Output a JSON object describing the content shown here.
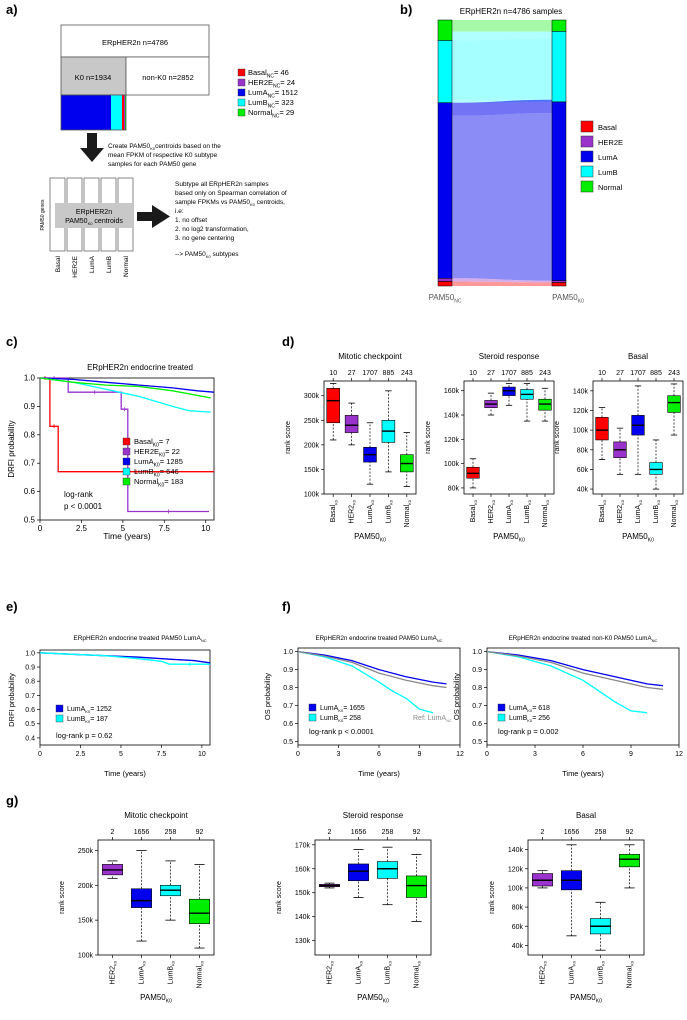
{
  "figure": {
    "panel_labels": [
      "a)",
      "b)",
      "c)",
      "d)",
      "e)",
      "f)",
      "g)"
    ]
  },
  "colors": {
    "Basal": "#ff0000",
    "HER2E": "#9933cc",
    "LumA": "#0000ee",
    "LumB": "#00ffff",
    "Normal": "#00ee00"
  },
  "panel_a": {
    "top_box": "ERpHER2n n=4786",
    "k0_box": "K0 n=1934",
    "nonk0_box": "non-K0 n=2852",
    "legend": [
      {
        "pre": "Basal",
        "sub": "NC",
        "post": "= 46",
        "color": "#ff0000"
      },
      {
        "pre": "HER2E",
        "sub": "NC",
        "post": "= 24",
        "color": "#9933cc"
      },
      {
        "pre": "LumA",
        "sub": "NC",
        "post": "= 1512",
        "color": "#0000ee"
      },
      {
        "pre": "LumB",
        "sub": "NC",
        "post": "= 323",
        "color": "#00ffff"
      },
      {
        "pre": "Normal",
        "sub": "NC",
        "post": "= 29",
        "color": "#00ee00"
      }
    ],
    "create_text": [
      "Create PAM50",
      "centroids based on the",
      "mean FPKM of respective K0 subtype",
      "samples for each PAM50 gene"
    ],
    "create_sub": "K0",
    "genes_label": "PAM50 genes",
    "centroid_title": "ERpHER2n",
    "centroid_sub_pre": "PAM50",
    "centroid_sub_sub": "K0",
    "centroid_sub_post": " centroids",
    "centroid_cols": [
      "Basal",
      "HER2E",
      "LumA",
      "LumB",
      "Normal"
    ],
    "subtype_text": [
      "Subtype all ERpHER2n samples",
      "based only on Spearman correlation of",
      "sample FPKMs vs PAM50",
      " centroids,",
      "i.e:",
      "1. no offset",
      "2. no log2 transformation,",
      "3. no gene centering",
      "--> PAM50",
      " subtypes"
    ]
  },
  "panel_b": {
    "title": "ERpHER2n n=4786 samples",
    "left_label": "PAM50",
    "left_sub": "NC",
    "right_label": "PAM50",
    "right_sub": "K0",
    "legend": [
      "Basal",
      "HER2E",
      "LumA",
      "LumB",
      "Normal"
    ]
  },
  "panel_c": {
    "title": "ERpHER2n endocrine treated",
    "ylabel": "DRFI probability",
    "xlabel": "Time (years)",
    "xticks": [
      "0",
      "2.5",
      "5",
      "7.5",
      "10"
    ],
    "yticks": [
      "0.5",
      "0.6",
      "0.7",
      "0.8",
      "0.9",
      "1.0"
    ],
    "legend": [
      {
        "pre": "Basal",
        "sub": "K0",
        "post": "= 7"
      },
      {
        "pre": "HER2E",
        "sub": "K0",
        "post": "= 22"
      },
      {
        "pre": "LumA",
        "sub": "K0",
        "post": "= 1285"
      },
      {
        "pre": "LumB",
        "sub": "K0",
        "post": "= 646"
      },
      {
        "pre": "Normal",
        "sub": "K0",
        "post": "= 183"
      }
    ],
    "logrank": [
      "log-rank",
      "p < 0.0001"
    ]
  },
  "panel_d": {
    "ylabel": "rank score",
    "xlabel_pre": "PAM50",
    "xlabel_sub": "K0",
    "categories": [
      "Basal",
      "HER2",
      "LumA",
      "LumB",
      "Normal"
    ],
    "counts": [
      "10",
      "27",
      "1707",
      "885",
      "243"
    ],
    "plots": [
      {
        "title": "Mitotic checkpoint",
        "yticks": [
          "100k",
          "150k",
          "200k",
          "250k",
          "300k"
        ]
      },
      {
        "title": "Steroid response",
        "yticks": [
          "80k",
          "100k",
          "120k",
          "140k",
          "160k"
        ]
      },
      {
        "title": "Basal",
        "yticks": [
          "40k",
          "60k",
          "80k",
          "100k",
          "120k",
          "140k"
        ]
      }
    ]
  },
  "panel_e": {
    "title_pre": "ERpHER2n endocrine treated PAM50 LumA",
    "title_sub": "NC",
    "ylabel": "DRFI probability",
    "xlabel": "Time (years)",
    "xticks": [
      "0",
      "2.5",
      "5",
      "7.5",
      "10"
    ],
    "yticks": [
      "0.0",
      "0.1",
      "0.2",
      "0.3",
      "0.4",
      "0.5",
      "0.6",
      "0.7",
      "0.8",
      "0.9",
      "1.0"
    ],
    "legend": [
      {
        "pre": "LumA",
        "sub": "K0",
        "post": "= 1252"
      },
      {
        "pre": "LumB",
        "sub": "K0",
        "post": "= 187"
      }
    ],
    "logrank": "log-rank p = 0.62"
  },
  "panel_f": {
    "ylabel": "OS probability",
    "xlabel": "Time (years)",
    "xticks": [
      "0",
      "3",
      "6",
      "9",
      "12"
    ],
    "yticks": [
      "0.0",
      "0.1",
      "0.2",
      "0.3",
      "0.4",
      "0.5",
      "0.6",
      "0.7",
      "0.8",
      "0.9",
      "1.0"
    ],
    "plots": [
      {
        "title_pre": "ERpHER2n endocrine treated PAM50 LumA",
        "title_sub": "NC",
        "legend": [
          {
            "pre": "LumA",
            "sub": "K0",
            "post": "= 1655"
          },
          {
            "pre": "LumB",
            "sub": "K0",
            "post": "= 258"
          }
        ],
        "logrank": "log-rank p < 0.0001",
        "ref_pre": "Ref: LumA",
        "ref_sub": "NC"
      },
      {
        "title_pre": "ERpHER2n endocrine treated non-K0 PAM50 LumA",
        "title_sub": "NC",
        "legend": [
          {
            "pre": "LumA",
            "sub": "K0",
            "post": "= 618"
          },
          {
            "pre": "LumB",
            "sub": "K0",
            "post": "= 256"
          }
        ],
        "logrank": "log-rank p = 0.002"
      }
    ]
  },
  "panel_g": {
    "ylabel": "rank score",
    "xlabel_pre": "PAM50",
    "xlabel_sub": "K0",
    "categories": [
      "HER2",
      "LumA",
      "LumB",
      "Normal"
    ],
    "counts": [
      "2",
      "1656",
      "258",
      "92"
    ],
    "plots": [
      {
        "title": "Mitotic checkpoint",
        "yticks": [
          "100k",
          "150k",
          "200k",
          "250k"
        ]
      },
      {
        "title": "Steroid response",
        "yticks": [
          "130k",
          "140k",
          "150k",
          "160k",
          "170k"
        ]
      },
      {
        "title": "Basal",
        "yticks": [
          "40k",
          "60k",
          "80k",
          "100k",
          "120k",
          "140k"
        ]
      }
    ]
  },
  "chart_data": [
    {
      "type": "line",
      "title": "ERpHER2n endocrine treated",
      "xlabel": "Time (years)",
      "ylabel": "DRFI probability",
      "xlim": [
        0,
        10.5
      ],
      "ylim": [
        0.5,
        1.0
      ],
      "series": [
        {
          "name": "Basal K0",
          "color": "#ff0000",
          "x": [
            0,
            0.6,
            0.6,
            1.1,
            1.1,
            10.5
          ],
          "y": [
            1.0,
            1.0,
            0.83,
            0.83,
            0.67,
            0.67
          ]
        },
        {
          "name": "HER2E K0",
          "color": "#9933cc",
          "x": [
            0,
            1.7,
            1.7,
            4.9,
            4.9,
            5.3,
            5.3,
            10.2
          ],
          "y": [
            1.0,
            1.0,
            0.95,
            0.95,
            0.89,
            0.89,
            0.53,
            0.53
          ]
        },
        {
          "name": "LumA K0",
          "color": "#0000ee",
          "x": [
            0,
            2,
            4,
            6,
            8,
            9.5,
            10.5
          ],
          "y": [
            1.0,
            0.995,
            0.985,
            0.975,
            0.965,
            0.955,
            0.95
          ]
        },
        {
          "name": "LumB K0",
          "color": "#00ffff",
          "x": [
            0,
            2,
            4,
            6,
            8,
            9,
            10.3
          ],
          "y": [
            1.0,
            0.985,
            0.96,
            0.935,
            0.9,
            0.885,
            0.88
          ]
        },
        {
          "name": "Normal K0",
          "color": "#00ee00",
          "x": [
            0,
            2,
            4,
            6,
            8,
            10.3
          ],
          "y": [
            1.0,
            0.985,
            0.975,
            0.97,
            0.955,
            0.93
          ]
        }
      ]
    },
    {
      "type": "box",
      "title": "Mitotic checkpoint",
      "ylabel": "rank score",
      "ylim": [
        100000,
        330000
      ],
      "categories": [
        "Basal",
        "HER2",
        "LumA",
        "LumB",
        "Normal"
      ],
      "counts": [
        10,
        27,
        1707,
        885,
        243
      ],
      "boxes": [
        [
          210000,
          245000,
          290000,
          315000,
          325000
        ],
        [
          200000,
          225000,
          240000,
          260000,
          285000
        ],
        [
          120000,
          165000,
          180000,
          195000,
          245000
        ],
        [
          145000,
          205000,
          228000,
          250000,
          310000
        ],
        [
          115000,
          145000,
          162000,
          180000,
          225000
        ]
      ]
    },
    {
      "type": "box",
      "title": "Steroid response",
      "ylabel": "rank score",
      "ylim": [
        75000,
        168000
      ],
      "categories": [
        "Basal",
        "HER2",
        "LumA",
        "LumB",
        "Normal"
      ],
      "counts": [
        10,
        27,
        1707,
        885,
        243
      ],
      "boxes": [
        [
          80000,
          88000,
          92000,
          97000,
          104000
        ],
        [
          140000,
          146000,
          149000,
          152000,
          158000
        ],
        [
          148000,
          156000,
          160000,
          163000,
          166000
        ],
        [
          135000,
          153000,
          157000,
          161000,
          166000
        ],
        [
          135000,
          144000,
          149000,
          153000,
          162000
        ]
      ]
    },
    {
      "type": "box",
      "title": "Basal",
      "ylabel": "rank score",
      "ylim": [
        35000,
        150000
      ],
      "categories": [
        "Basal",
        "HER2",
        "LumA",
        "LumB",
        "Normal"
      ],
      "counts": [
        10,
        27,
        1707,
        885,
        243
      ],
      "boxes": [
        [
          70000,
          90000,
          100000,
          113000,
          123000
        ],
        [
          55000,
          72000,
          80000,
          88000,
          102000
        ],
        [
          55000,
          95000,
          105000,
          115000,
          145000
        ],
        [
          40000,
          55000,
          60000,
          67000,
          90000
        ],
        [
          95000,
          118000,
          128000,
          135000,
          147000
        ]
      ]
    },
    {
      "type": "line",
      "title": "ERpHER2n endocrine treated PAM50 LumA NC",
      "xlabel": "Time (years)",
      "ylabel": "DRFI probability",
      "xlim": [
        0,
        10.5
      ],
      "ylim": [
        0.0,
        1.0
      ],
      "series": [
        {
          "name": "LumA K0",
          "color": "#0000ee",
          "x": [
            0,
            2,
            4,
            6,
            8,
            9.5,
            10.5
          ],
          "y": [
            1.0,
            0.99,
            0.98,
            0.97,
            0.955,
            0.945,
            0.93
          ]
        },
        {
          "name": "LumB K0",
          "color": "#00ffff",
          "x": [
            0,
            2,
            4,
            6,
            7.5,
            8,
            10.5
          ],
          "y": [
            1.0,
            0.99,
            0.98,
            0.96,
            0.94,
            0.92,
            0.92
          ]
        }
      ]
    },
    {
      "type": "line",
      "title": "ERpHER2n endocrine treated PAM50 LumA NC",
      "xlabel": "Time (years)",
      "ylabel": "OS probability",
      "xlim": [
        0,
        11.5
      ],
      "ylim": [
        0.0,
        1.0
      ],
      "series": [
        {
          "name": "LumA K0",
          "color": "#0000ee",
          "x": [
            0,
            2,
            4,
            6,
            8,
            10,
            11
          ],
          "y": [
            1.0,
            0.98,
            0.95,
            0.9,
            0.86,
            0.83,
            0.82
          ]
        },
        {
          "name": "LumB K0",
          "color": "#00ffff",
          "x": [
            0,
            2,
            4,
            6,
            7,
            8,
            9,
            10
          ],
          "y": [
            1.0,
            0.97,
            0.92,
            0.83,
            0.78,
            0.74,
            0.68,
            0.66
          ]
        },
        {
          "name": "Ref: LumA NC",
          "color": "#888888",
          "x": [
            0,
            2,
            4,
            6,
            8,
            10,
            11
          ],
          "y": [
            1.0,
            0.975,
            0.94,
            0.88,
            0.84,
            0.81,
            0.8
          ]
        }
      ]
    },
    {
      "type": "line",
      "title": "ERpHER2n endocrine treated non-K0 PAM50 LumA NC",
      "xlabel": "Time (years)",
      "ylabel": "OS probability",
      "xlim": [
        0,
        11.5
      ],
      "ylim": [
        0.0,
        1.0
      ],
      "series": [
        {
          "name": "LumA K0",
          "color": "#0000ee",
          "x": [
            0,
            2,
            4,
            6,
            8,
            10,
            11
          ],
          "y": [
            1.0,
            0.98,
            0.95,
            0.9,
            0.86,
            0.82,
            0.81
          ]
        },
        {
          "name": "LumB K0",
          "color": "#00ffff",
          "x": [
            0,
            2,
            4,
            6,
            7,
            8,
            9,
            10
          ],
          "y": [
            1.0,
            0.97,
            0.92,
            0.84,
            0.78,
            0.72,
            0.67,
            0.66
          ]
        },
        {
          "name": "Ref",
          "color": "#888888",
          "x": [
            0,
            2,
            4,
            6,
            8,
            10,
            11
          ],
          "y": [
            1.0,
            0.975,
            0.94,
            0.88,
            0.84,
            0.8,
            0.79
          ]
        }
      ]
    },
    {
      "type": "box",
      "title": "Mitotic checkpoint",
      "ylabel": "rank score",
      "ylim": [
        100000,
        265000
      ],
      "categories": [
        "HER2",
        "LumA",
        "LumB",
        "Normal"
      ],
      "counts": [
        2,
        1656,
        258,
        92
      ],
      "boxes": [
        [
          210000,
          215000,
          222000,
          230000,
          235000
        ],
        [
          120000,
          168000,
          178000,
          195000,
          250000
        ],
        [
          150000,
          185000,
          193000,
          200000,
          235000
        ],
        [
          110000,
          145000,
          160000,
          180000,
          230000
        ]
      ]
    },
    {
      "type": "box",
      "title": "Steroid response",
      "ylabel": "rank score",
      "ylim": [
        124000,
        172000
      ],
      "categories": [
        "HER2",
        "LumA",
        "LumB",
        "Normal"
      ],
      "counts": [
        2,
        1656,
        258,
        92
      ],
      "boxes": [
        [
          152000,
          152500,
          153000,
          153500,
          154000
        ],
        [
          148000,
          155000,
          159000,
          162000,
          168000
        ],
        [
          145000,
          156000,
          160000,
          163000,
          169000
        ],
        [
          138000,
          148000,
          153000,
          157000,
          166000
        ]
      ]
    },
    {
      "type": "box",
      "title": "Basal",
      "ylabel": "rank score",
      "ylim": [
        30000,
        150000
      ],
      "categories": [
        "HER2",
        "LumA",
        "LumB",
        "Normal"
      ],
      "counts": [
        2,
        1656,
        258,
        92
      ],
      "boxes": [
        [
          100000,
          102000,
          108000,
          115000,
          118000
        ],
        [
          50000,
          98000,
          108000,
          118000,
          145000
        ],
        [
          35000,
          52000,
          60000,
          68000,
          85000
        ],
        [
          100000,
          122000,
          130000,
          135000,
          145000
        ]
      ]
    }
  ]
}
